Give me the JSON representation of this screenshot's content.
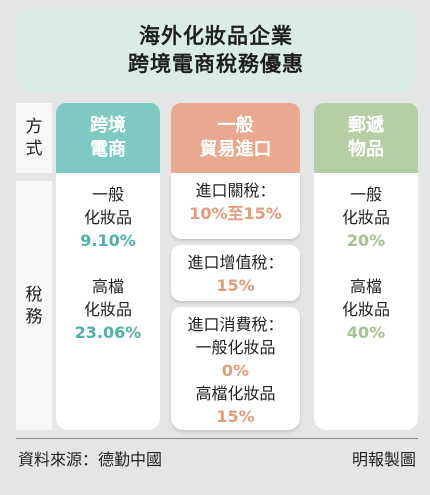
{
  "title": {
    "line1": "海外化妝品企業",
    "line2": "跨境電商稅務優惠"
  },
  "row_labels": {
    "method": [
      "方",
      "式"
    ],
    "tax": [
      "稅",
      "務"
    ]
  },
  "columns": {
    "cross_border": {
      "header": [
        "跨境",
        "電商"
      ],
      "general": {
        "line1": "一般",
        "line2": "化妝品",
        "rate": "9.10%"
      },
      "premium": {
        "line1": "高檔",
        "line2": "化妝品",
        "rate": "23.06%"
      }
    },
    "general_trade": {
      "header": [
        "一般",
        "貿易進口"
      ],
      "customs": {
        "label": "進口關稅：",
        "rate": "10%至15%"
      },
      "vat": {
        "label": "進口增值稅：",
        "rate": "15%"
      },
      "consumption": {
        "label": "進口消費稅：",
        "general_label": "一般化妝品",
        "general_rate": "0%",
        "premium_label": "高檔化妝品",
        "premium_rate": "15%"
      }
    },
    "postal": {
      "header": [
        "郵遞",
        "物品"
      ],
      "general": {
        "line1": "一般",
        "line2": "化妝品",
        "rate": "20%"
      },
      "premium": {
        "line1": "高檔",
        "line2": "化妝品",
        "rate": "40%"
      }
    }
  },
  "footer": {
    "source": "資料來源：德勤中國",
    "credit": "明報製圖"
  },
  "colors": {
    "teal": "#4fb2aa",
    "orange": "#e59a78",
    "green": "#a3c38d"
  }
}
